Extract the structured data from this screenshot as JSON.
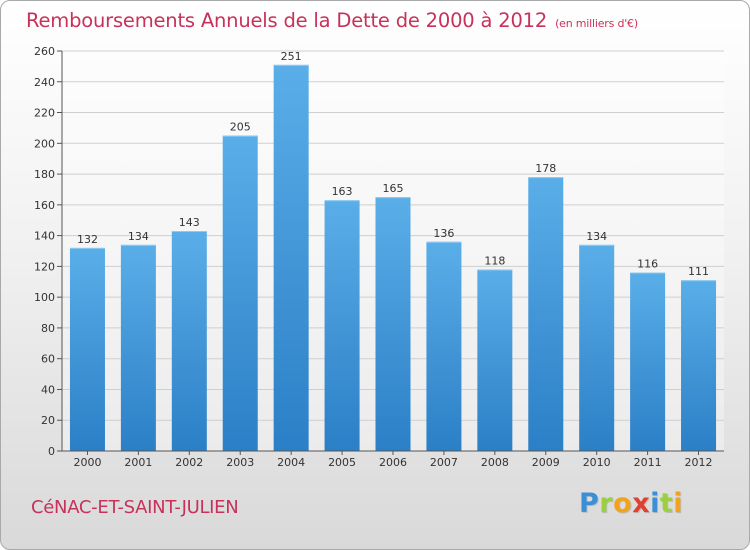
{
  "title": "Remboursements Annuels de la Dette de 2000 à 2012",
  "subtitle": "(en milliers d'€)",
  "location": "CéNAC-ET-SAINT-JULIEN",
  "logo": {
    "text": "Proxiti",
    "letters": [
      {
        "ch": "P",
        "color": "#3a8fd6"
      },
      {
        "ch": "r",
        "color": "#9bcf3f"
      },
      {
        "ch": "o",
        "color": "#f3a21b"
      },
      {
        "ch": "x",
        "color": "#e2402f"
      },
      {
        "ch": "i",
        "color": "#3a8fd6"
      },
      {
        "ch": "t",
        "color": "#9bcf3f"
      },
      {
        "ch": "i",
        "color": "#f3a21b"
      }
    ]
  },
  "colors": {
    "bar_top": "#5aaee8",
    "bar_bottom": "#2b7fc6",
    "title": "#c8325a",
    "grid": "#cfcfcf"
  },
  "chart_data": {
    "type": "bar",
    "title": "Remboursements Annuels de la Dette de 2000 à 2012",
    "subtitle": "(en milliers d'€)",
    "categories": [
      "2000",
      "2001",
      "2002",
      "2003",
      "2004",
      "2005",
      "2006",
      "2007",
      "2008",
      "2009",
      "2010",
      "2011",
      "2012"
    ],
    "values": [
      132,
      134,
      143,
      205,
      251,
      163,
      165,
      136,
      118,
      178,
      134,
      116,
      111
    ],
    "ylim": [
      0,
      260
    ],
    "yticks": [
      0,
      20,
      40,
      60,
      80,
      100,
      120,
      140,
      160,
      180,
      200,
      220,
      240,
      260
    ],
    "grid": true,
    "data_labels": true
  }
}
